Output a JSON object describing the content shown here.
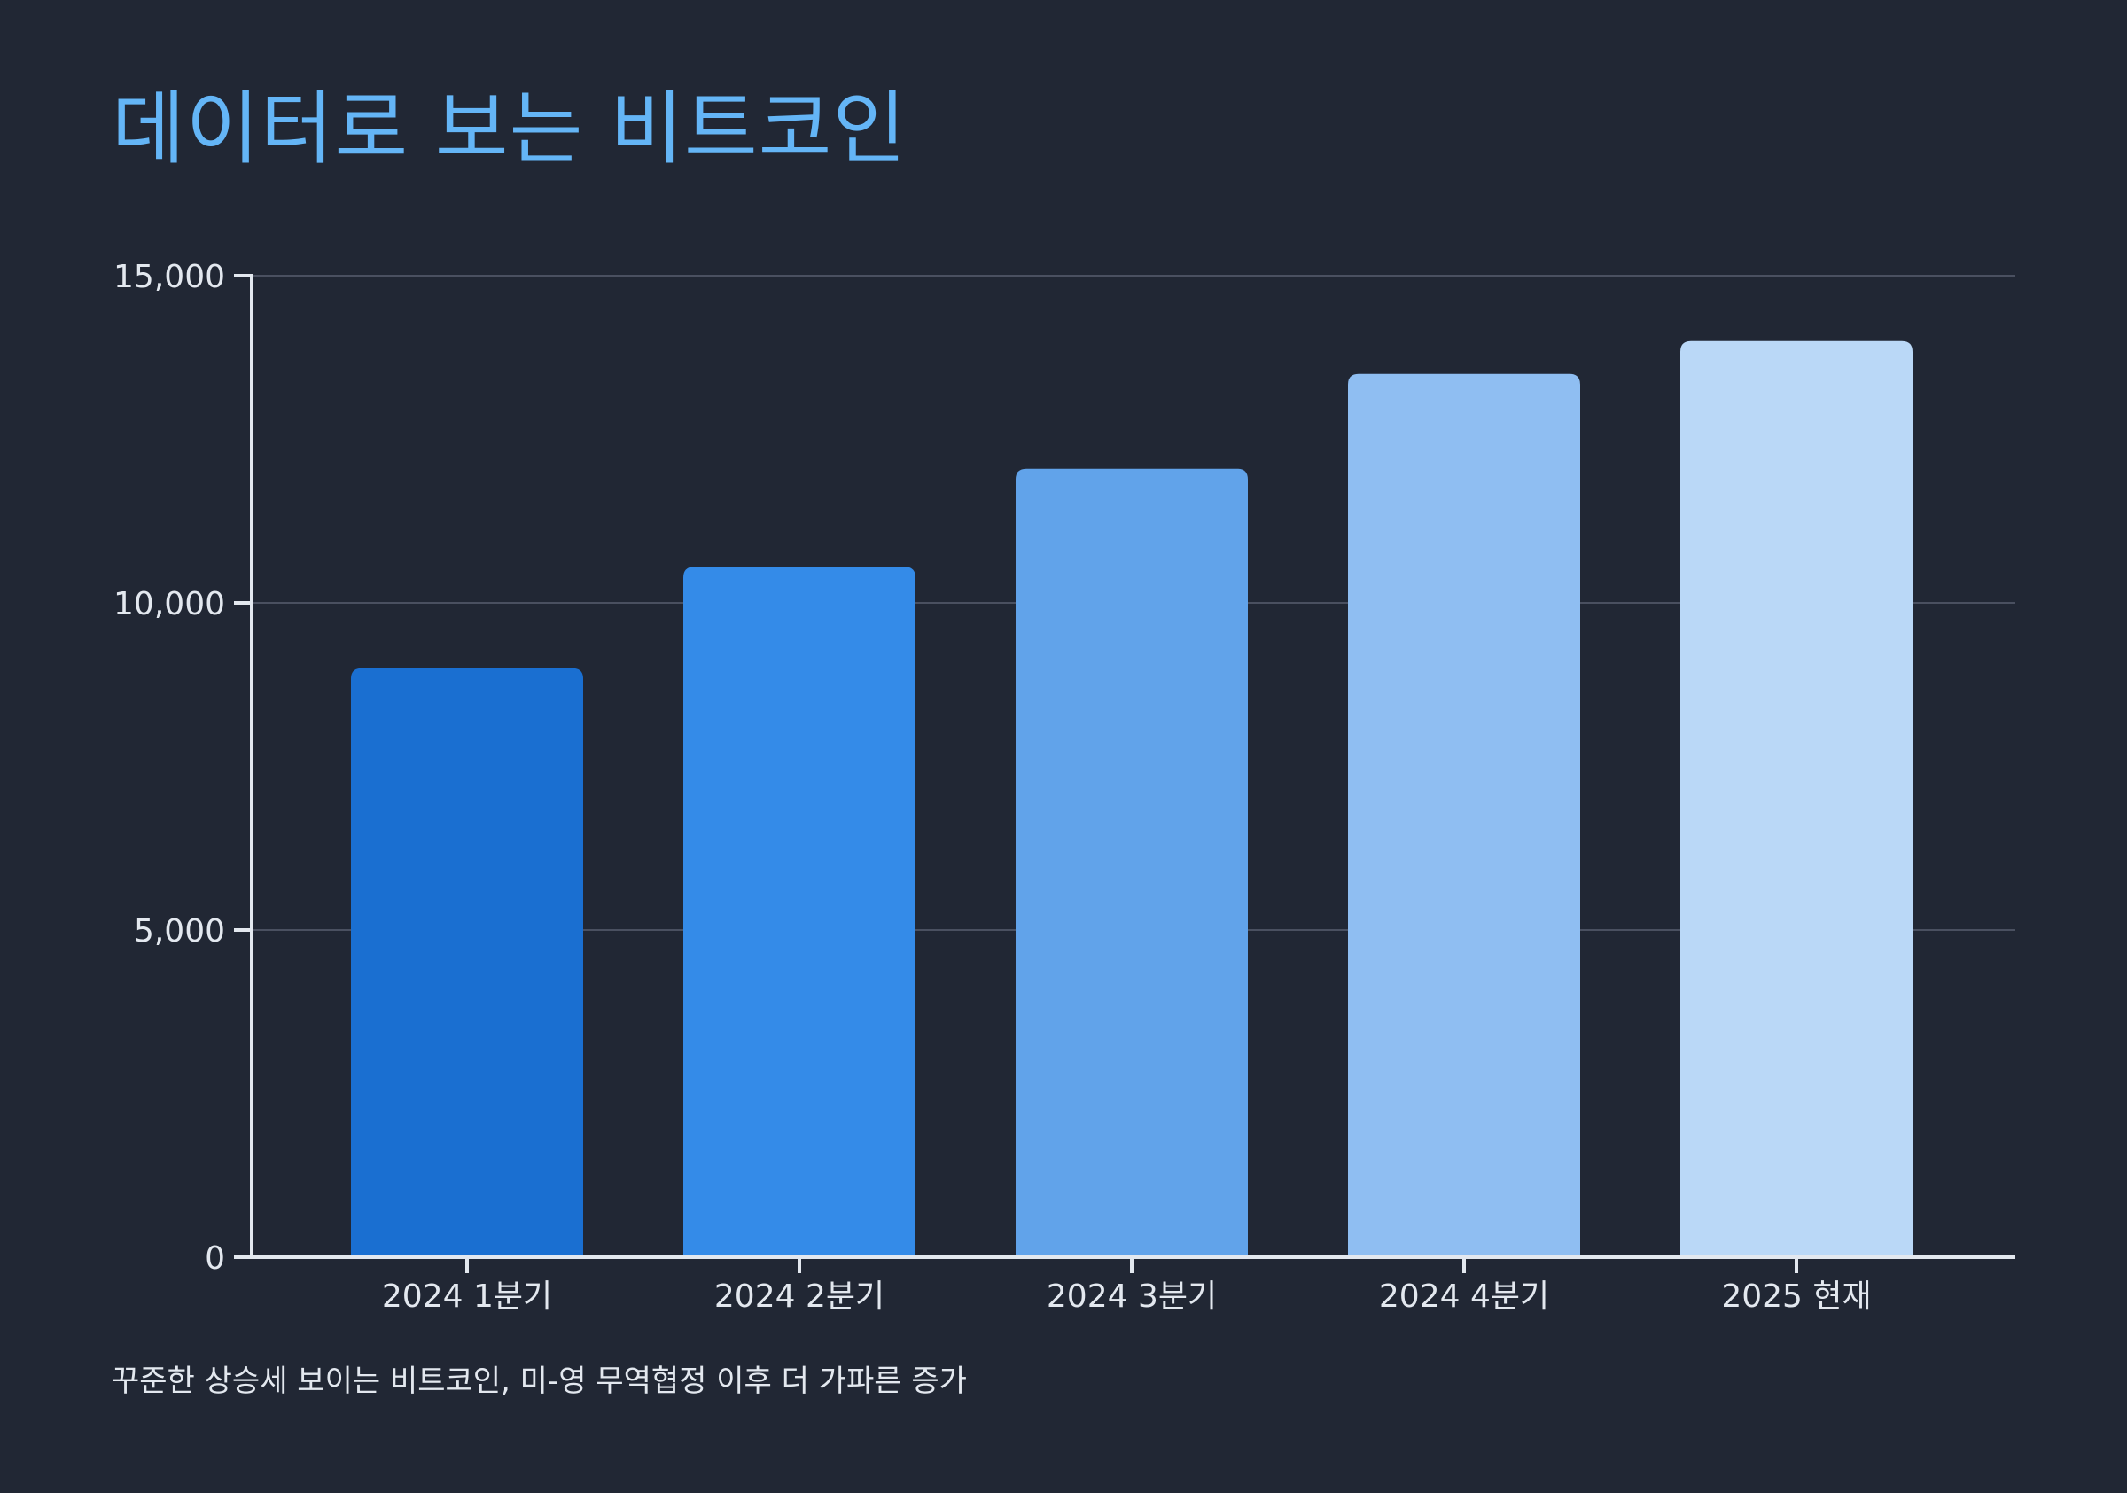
{
  "title": "데이터로 보는 비트코인",
  "caption": "꾸준한 상승세 보이는 비트코인, 미-영 무역협정 이후 더 가파른 증가",
  "colors": {
    "background": "#212734",
    "title": "#64b5f6",
    "text": "#e3e8ef",
    "grid": "#4a5060",
    "bars": [
      "#1a6fd1",
      "#348be8",
      "#61a3ea",
      "#8fbef2",
      "#bad8f7"
    ]
  },
  "chart_data": {
    "type": "bar",
    "categories": [
      "2024 1분기",
      "2024 2분기",
      "2024 3분기",
      "2024 4분기",
      "2025 현재"
    ],
    "values": [
      9000,
      10550,
      12050,
      13500,
      14000
    ],
    "ylim": [
      0,
      15000
    ],
    "yticks": [
      0,
      5000,
      10000,
      15000
    ],
    "ytick_labels": [
      "0",
      "5,000",
      "10,000",
      "15,000"
    ],
    "grid": true,
    "legend": "none"
  }
}
